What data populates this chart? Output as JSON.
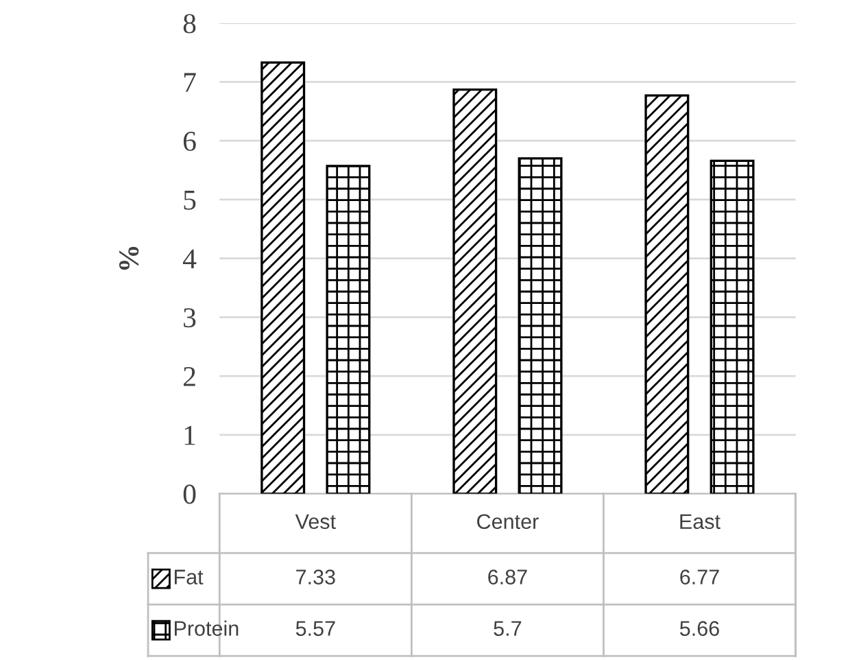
{
  "chart_data": {
    "type": "bar",
    "ylabel": "%",
    "categories": [
      "Vest",
      "Center",
      "East"
    ],
    "series": [
      {
        "name": "Fat",
        "color": "#000000",
        "values": [
          7.33,
          6.87,
          6.77
        ]
      },
      {
        "name": "Protein",
        "color": "#000000",
        "values": [
          5.57,
          5.7,
          5.66
        ]
      }
    ],
    "ylim": [
      0,
      8
    ],
    "yticks": [
      0,
      1,
      2,
      3,
      4,
      5,
      6,
      7,
      8
    ],
    "grid": "y",
    "legend": "bottom",
    "data_labels": true
  }
}
